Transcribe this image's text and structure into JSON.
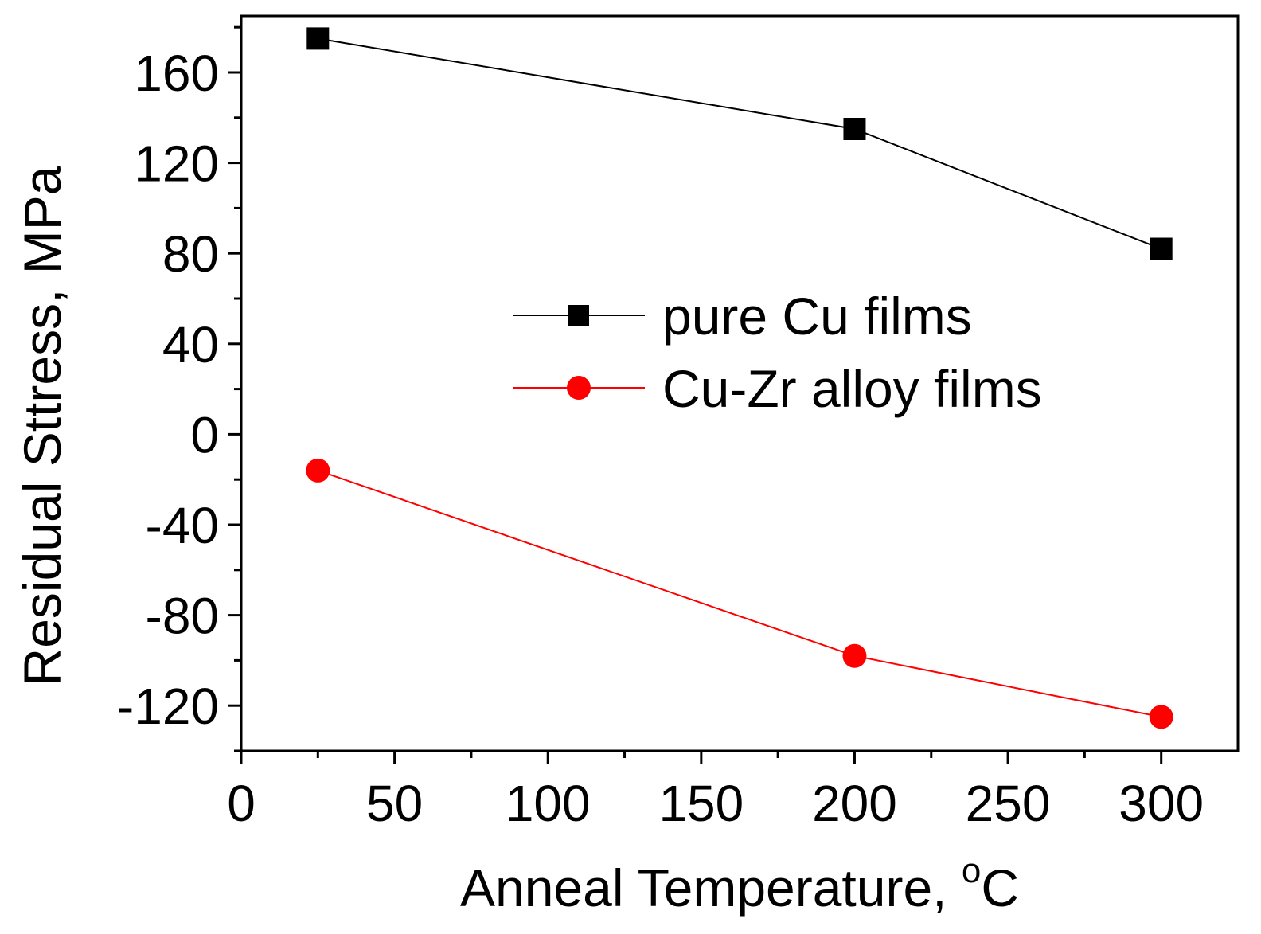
{
  "chart_data": {
    "type": "line",
    "title": "",
    "xlabel": "Anneal Temperature, ",
    "xlabel_unit_sup": "o",
    "xlabel_unit": "C",
    "ylabel": "Residual Sttress, MPa",
    "xlim": [
      0,
      325
    ],
    "ylim": [
      -140,
      185
    ],
    "xticks": [
      0,
      50,
      100,
      150,
      200,
      250,
      300
    ],
    "xtick_labels": [
      "0",
      "50",
      "100",
      "150",
      "200",
      "250",
      "300"
    ],
    "yticks": [
      -120,
      -80,
      -40,
      0,
      40,
      80,
      120,
      160
    ],
    "ytick_labels": [
      "-120",
      "-80",
      "-40",
      "0",
      "40",
      "80",
      "120",
      "160"
    ],
    "grid": false,
    "legend_position": "center-right",
    "series": [
      {
        "name": "pure Cu films",
        "color": "#000000",
        "marker": "square",
        "x": [
          25,
          200,
          300
        ],
        "y": [
          175,
          135,
          82
        ]
      },
      {
        "name": "Cu-Zr alloy films",
        "color": "#ff0000",
        "marker": "circle",
        "x": [
          25,
          200,
          300
        ],
        "y": [
          -16,
          -98,
          -125
        ]
      }
    ]
  }
}
